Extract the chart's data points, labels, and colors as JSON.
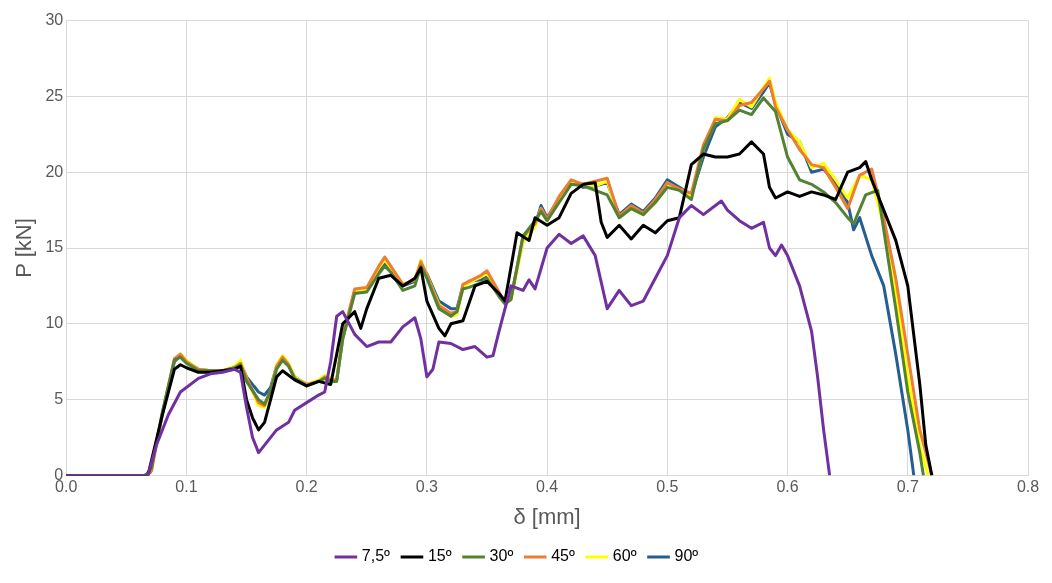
{
  "chart_data": {
    "type": "line",
    "xlabel": "δ [mm]",
    "ylabel": "P [kN]",
    "xlim": [
      0,
      0.8
    ],
    "ylim": [
      0,
      30
    ],
    "xticks": [
      {
        "value": 0,
        "label": "0.0"
      },
      0.1,
      0.2,
      0.3,
      0.4,
      0.5,
      0.6,
      0.7,
      0.8
    ],
    "yticks": [
      0,
      5,
      10,
      15,
      20,
      25,
      30
    ],
    "grid": true,
    "legend": "bottom",
    "marker": "none",
    "line_style": "solid",
    "series": [
      {
        "name": "7,5º",
        "color": "#7030a0",
        "x": [
          0,
          0.068,
          0.075,
          0.085,
          0.095,
          0.11,
          0.12,
          0.13,
          0.14,
          0.145,
          0.15,
          0.155,
          0.16,
          0.165,
          0.175,
          0.185,
          0.19,
          0.2,
          0.21,
          0.215,
          0.22,
          0.225,
          0.23,
          0.24,
          0.25,
          0.26,
          0.27,
          0.28,
          0.29,
          0.295,
          0.3,
          0.305,
          0.31,
          0.32,
          0.33,
          0.34,
          0.35,
          0.355,
          0.36,
          0.37,
          0.38,
          0.385,
          0.39,
          0.4,
          0.41,
          0.42,
          0.43,
          0.44,
          0.45,
          0.46,
          0.47,
          0.48,
          0.49,
          0.5,
          0.51,
          0.52,
          0.53,
          0.54,
          0.545,
          0.55,
          0.56,
          0.57,
          0.58,
          0.585,
          0.59,
          0.595,
          0.6,
          0.61,
          0.62,
          0.625,
          0.63,
          0.635
        ],
        "values": [
          0,
          0,
          2,
          4,
          5.5,
          6.4,
          6.7,
          6.8,
          7,
          6.8,
          4.5,
          2.5,
          1.5,
          2,
          3,
          3.5,
          4.3,
          4.8,
          5.3,
          5.5,
          7.5,
          10.5,
          10.8,
          9.3,
          8.5,
          8.8,
          8.8,
          9.8,
          10.4,
          9,
          6.5,
          7,
          8.8,
          8.7,
          8.3,
          8.5,
          7.8,
          7.9,
          9.5,
          12.5,
          12.2,
          12.9,
          12.3,
          15,
          15.9,
          15.3,
          15.8,
          14.5,
          11,
          12.2,
          11.2,
          11.5,
          13,
          14.5,
          17,
          17.8,
          17.2,
          17.8,
          18.1,
          17.5,
          16.8,
          16.3,
          16.7,
          15,
          14.5,
          15.2,
          14.5,
          12.5,
          9.5,
          6.5,
          3,
          0
        ]
      },
      {
        "name": "15º",
        "color": "#000000",
        "x": [
          0,
          0.068,
          0.08,
          0.09,
          0.095,
          0.1,
          0.11,
          0.12,
          0.13,
          0.14,
          0.145,
          0.15,
          0.155,
          0.16,
          0.165,
          0.175,
          0.18,
          0.19,
          0.2,
          0.21,
          0.22,
          0.23,
          0.24,
          0.245,
          0.25,
          0.26,
          0.27,
          0.28,
          0.29,
          0.295,
          0.3,
          0.31,
          0.315,
          0.32,
          0.33,
          0.34,
          0.35,
          0.36,
          0.365,
          0.375,
          0.385,
          0.39,
          0.4,
          0.41,
          0.42,
          0.43,
          0.44,
          0.445,
          0.45,
          0.46,
          0.47,
          0.48,
          0.49,
          0.5,
          0.51,
          0.52,
          0.53,
          0.54,
          0.55,
          0.56,
          0.57,
          0.58,
          0.585,
          0.59,
          0.6,
          0.61,
          0.62,
          0.63,
          0.64,
          0.65,
          0.66,
          0.665,
          0.67,
          0.68,
          0.69,
          0.7,
          0.71,
          0.715,
          0.72
        ],
        "values": [
          0,
          0,
          4,
          7,
          7.3,
          7.1,
          6.8,
          6.8,
          6.9,
          7,
          7.2,
          5,
          3.8,
          3,
          3.5,
          6.5,
          6.9,
          6.3,
          5.9,
          6.2,
          6,
          10,
          10.8,
          9.7,
          11,
          13,
          13.2,
          12.5,
          13,
          13.7,
          11.5,
          9.7,
          9.2,
          10,
          10.2,
          12.5,
          12.8,
          12,
          11.5,
          16,
          15.5,
          17,
          16.5,
          17,
          18.6,
          19.2,
          19.3,
          16.7,
          15.7,
          16.5,
          15.6,
          16.5,
          16,
          16.8,
          17,
          20.5,
          21.2,
          21,
          21,
          21.2,
          22,
          21.2,
          19,
          18.3,
          18.7,
          18.4,
          18.7,
          18.5,
          18.2,
          20,
          20.3,
          20.7,
          19.5,
          17.5,
          15.5,
          12.5,
          6,
          2,
          0
        ]
      },
      {
        "name": "30º",
        "color": "#548235",
        "x": [
          0,
          0.066,
          0.071,
          0.08,
          0.09,
          0.095,
          0.1,
          0.11,
          0.12,
          0.13,
          0.14,
          0.145,
          0.15,
          0.16,
          0.165,
          0.17,
          0.175,
          0.18,
          0.185,
          0.19,
          0.2,
          0.21,
          0.215,
          0.22,
          0.225,
          0.23,
          0.24,
          0.25,
          0.26,
          0.265,
          0.27,
          0.28,
          0.29,
          0.295,
          0.3,
          0.31,
          0.32,
          0.325,
          0.33,
          0.335,
          0.345,
          0.35,
          0.36,
          0.365,
          0.37,
          0.38,
          0.39,
          0.395,
          0.4,
          0.41,
          0.42,
          0.43,
          0.44,
          0.45,
          0.46,
          0.47,
          0.48,
          0.49,
          0.5,
          0.51,
          0.52,
          0.53,
          0.54,
          0.55,
          0.56,
          0.57,
          0.58,
          0.59,
          0.6,
          0.61,
          0.62,
          0.63,
          0.64,
          0.65,
          0.655,
          0.665,
          0.675,
          0.69,
          0.7,
          0.71,
          0.713
        ],
        "values": [
          0,
          0,
          0.5,
          4.2,
          7.6,
          7.8,
          7.4,
          6.9,
          6.9,
          6.9,
          7.1,
          7.3,
          6.2,
          5,
          4.7,
          5.6,
          7,
          7.6,
          7.2,
          6.4,
          5.9,
          6.2,
          6.4,
          6.2,
          6.2,
          9,
          12,
          12.1,
          13.3,
          13.8,
          13.4,
          12.2,
          12.5,
          13.8,
          13,
          11,
          10.5,
          10.8,
          12.3,
          12.4,
          12.7,
          13,
          11.8,
          11.3,
          11.6,
          15.8,
          16.8,
          17.4,
          16.8,
          18,
          19.2,
          19.1,
          18.8,
          18.5,
          17,
          17.6,
          17.2,
          18,
          19,
          18.8,
          18.2,
          21.5,
          23.2,
          23.4,
          24.1,
          23.8,
          24.9,
          24,
          21,
          19.5,
          19.2,
          18.7,
          18,
          17,
          16.6,
          18.5,
          18.8,
          11,
          5.5,
          1.5,
          0
        ]
      },
      {
        "name": "45º",
        "color": "#ed7d31",
        "x": [
          0,
          0.066,
          0.071,
          0.08,
          0.09,
          0.095,
          0.1,
          0.11,
          0.12,
          0.13,
          0.14,
          0.145,
          0.15,
          0.16,
          0.165,
          0.17,
          0.175,
          0.18,
          0.185,
          0.19,
          0.2,
          0.21,
          0.215,
          0.22,
          0.225,
          0.23,
          0.24,
          0.25,
          0.26,
          0.265,
          0.27,
          0.28,
          0.29,
          0.295,
          0.3,
          0.31,
          0.32,
          0.325,
          0.33,
          0.335,
          0.345,
          0.35,
          0.36,
          0.365,
          0.37,
          0.38,
          0.39,
          0.395,
          0.4,
          0.41,
          0.42,
          0.43,
          0.44,
          0.45,
          0.46,
          0.47,
          0.48,
          0.49,
          0.5,
          0.51,
          0.52,
          0.53,
          0.54,
          0.55,
          0.56,
          0.57,
          0.58,
          0.585,
          0.59,
          0.6,
          0.61,
          0.62,
          0.63,
          0.64,
          0.65,
          0.66,
          0.67,
          0.68,
          0.69,
          0.7,
          0.71,
          0.72
        ],
        "values": [
          0,
          0,
          0.3,
          4.1,
          7.7,
          8,
          7.5,
          7,
          6.9,
          6.9,
          7.1,
          7.4,
          6.4,
          4.8,
          4.6,
          5.6,
          7.2,
          7.8,
          7.3,
          6.4,
          6,
          6.2,
          6.5,
          6.3,
          6.3,
          9.2,
          12.3,
          12.4,
          13.8,
          14.4,
          13.8,
          12.6,
          12.9,
          14.1,
          13.2,
          11.2,
          10.7,
          10.8,
          12.6,
          12.8,
          13.2,
          13.5,
          12.1,
          11.4,
          11.7,
          15.8,
          16.6,
          17.6,
          16.9,
          18.4,
          19.5,
          19.2,
          19.4,
          19.6,
          17.1,
          17.8,
          17.3,
          18.2,
          19.3,
          18.9,
          18.6,
          21.8,
          23.5,
          23.4,
          24.4,
          24.6,
          25.5,
          26,
          24.3,
          22.8,
          21.5,
          20.5,
          20.3,
          19,
          17.6,
          19.8,
          20.2,
          17,
          13,
          8,
          3,
          0
        ]
      },
      {
        "name": "60º",
        "color": "#ffff00",
        "x": [
          0.09,
          0.095,
          0.1,
          0.11,
          0.12,
          0.13,
          0.14,
          0.145,
          0.15,
          0.16,
          0.165,
          0.17,
          0.175,
          0.18,
          0.185,
          0.19,
          0.2,
          0.21,
          0.215,
          0.22,
          0.225,
          0.23,
          0.24,
          0.25,
          0.26,
          0.265,
          0.27,
          0.28,
          0.29,
          0.295,
          0.3,
          0.31,
          0.32,
          0.325,
          0.33,
          0.335,
          0.345,
          0.35,
          0.36,
          0.365,
          0.37,
          0.38,
          0.39,
          0.395,
          0.4,
          0.41,
          0.42,
          0.43,
          0.44,
          0.45,
          0.46,
          0.47,
          0.48,
          0.49,
          0.5,
          0.51,
          0.52,
          0.53,
          0.54,
          0.55,
          0.56,
          0.57,
          0.58,
          0.585,
          0.59,
          0.6,
          0.61,
          0.62,
          0.63,
          0.64,
          0.65,
          0.66,
          0.67,
          0.68,
          0.69,
          0.7,
          0.71,
          0.717
        ],
        "values": [
          7.6,
          8,
          7.6,
          7,
          6.9,
          6.9,
          7.2,
          7.6,
          6.4,
          4.6,
          4.5,
          5.5,
          7.3,
          7.9,
          7.4,
          6.5,
          6,
          6.3,
          6.6,
          6.4,
          6.3,
          9,
          12.2,
          12.3,
          13.7,
          14.2,
          13.7,
          12.6,
          12.9,
          14.2,
          13.2,
          11.3,
          10.5,
          10.6,
          12.4,
          12.7,
          13.1,
          13.3,
          12,
          11.4,
          11.6,
          15.4,
          16.4,
          17.6,
          16.8,
          18.2,
          19.3,
          19.2,
          19.1,
          19.4,
          17,
          17.6,
          17.2,
          18,
          19.3,
          18.8,
          18.4,
          21.5,
          23.6,
          23.5,
          24.8,
          24.3,
          25.6,
          26.2,
          24.6,
          22.8,
          22,
          20.3,
          20.6,
          19.5,
          18.3,
          19.8,
          19.5,
          16.5,
          12,
          6.5,
          2,
          0
        ]
      },
      {
        "name": "90º",
        "color": "#255e91",
        "x": [
          0,
          0.065,
          0.07,
          0.08,
          0.09,
          0.095,
          0.1,
          0.11,
          0.12,
          0.13,
          0.14,
          0.145,
          0.15,
          0.16,
          0.165,
          0.17,
          0.175,
          0.18,
          0.185,
          0.19,
          0.2,
          0.21,
          0.215,
          0.22,
          0.225,
          0.23,
          0.24,
          0.25,
          0.26,
          0.265,
          0.27,
          0.28,
          0.29,
          0.295,
          0.3,
          0.31,
          0.32,
          0.325,
          0.33,
          0.335,
          0.345,
          0.35,
          0.36,
          0.365,
          0.37,
          0.38,
          0.39,
          0.395,
          0.4,
          0.41,
          0.42,
          0.43,
          0.44,
          0.45,
          0.46,
          0.47,
          0.48,
          0.49,
          0.5,
          0.51,
          0.52,
          0.53,
          0.54,
          0.55,
          0.56,
          0.57,
          0.58,
          0.585,
          0.59,
          0.6,
          0.61,
          0.62,
          0.63,
          0.64,
          0.65,
          0.655,
          0.66,
          0.67,
          0.68,
          0.69,
          0.7,
          0.705
        ],
        "values": [
          0,
          0,
          0.2,
          4,
          7.5,
          7.9,
          7.5,
          7,
          6.9,
          6.9,
          7.1,
          7.4,
          6.5,
          5.5,
          5.3,
          5.8,
          7.2,
          7.7,
          7.3,
          6.5,
          6,
          6.2,
          6.5,
          6.3,
          6.3,
          9,
          12.2,
          12.3,
          13.5,
          14,
          13.6,
          12.5,
          12.8,
          14,
          13.3,
          11.5,
          11,
          11,
          12.5,
          12.8,
          12.9,
          13.2,
          12,
          11.5,
          11.8,
          15.5,
          16.5,
          17.8,
          17,
          18.3,
          19.4,
          19,
          19.1,
          19.3,
          17.2,
          17.9,
          17.4,
          18.3,
          19.5,
          19,
          18.5,
          21,
          23,
          23.6,
          24.6,
          24.2,
          25.3,
          25.9,
          24.5,
          22.5,
          22,
          20,
          20.2,
          19.3,
          18,
          16.2,
          17,
          14.5,
          12.5,
          8,
          3,
          0
        ]
      }
    ]
  }
}
